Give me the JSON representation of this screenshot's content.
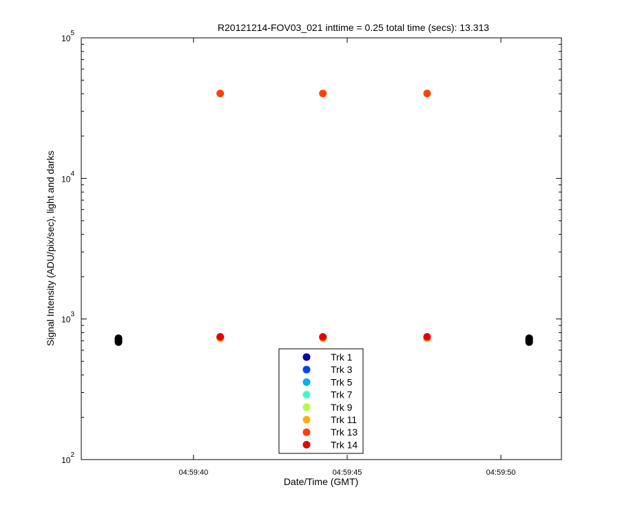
{
  "chart_data": {
    "type": "scatter",
    "title": "R20121214-FOV03_021 inttime = 0.25 total time (secs): 13.313",
    "xlabel": "Date/Time (GMT)",
    "ylabel": "Signal Intensity (ADU/pix/sec), light and darks",
    "xlim": [
      36.35,
      51.97
    ],
    "xticks": [
      {
        "value": 40,
        "label": "04:59:40"
      },
      {
        "value": 45,
        "label": "04:59:45"
      },
      {
        "value": 50,
        "label": "04:59:50"
      }
    ],
    "ylim": [
      100,
      100000
    ],
    "log_y": true,
    "yticks": [
      {
        "value": 100,
        "label": "10",
        "exponent": "2"
      },
      {
        "value": 1000,
        "label": "10",
        "exponent": "3"
      },
      {
        "value": 10000,
        "label": "10",
        "exponent": "4"
      },
      {
        "value": 100000,
        "label": "10",
        "exponent": "5"
      }
    ],
    "yminorticks": [
      200,
      300,
      400,
      500,
      600,
      700,
      800,
      900,
      2000,
      3000,
      4000,
      5000,
      6000,
      7000,
      8000,
      9000,
      20000,
      30000,
      40000,
      50000,
      60000,
      70000,
      80000,
      90000
    ],
    "grid": false,
    "legend": "lower center",
    "x": [
      40.87,
      44.21,
      47.6
    ],
    "series": [
      {
        "name": "Trk 1",
        "color": "#0000a8",
        "values": [
          740,
          740,
          740
        ]
      },
      {
        "name": "Trk 3",
        "color": "#0040ff",
        "values": [
          740,
          740,
          740
        ]
      },
      {
        "name": "Trk 5",
        "color": "#00b0f0",
        "values": [
          740,
          740,
          740
        ]
      },
      {
        "name": "Trk 7",
        "color": "#40ffc0",
        "values": [
          740,
          740,
          740
        ]
      },
      {
        "name": "Trk 9",
        "color": "#b0ff40",
        "values": [
          740,
          740,
          740
        ]
      },
      {
        "name": "Trk 11",
        "color": "#ffb000",
        "values": [
          730,
          730,
          730
        ]
      },
      {
        "name": "Trk 13",
        "color": "#ff4000",
        "values": [
          40200,
          40200,
          40200
        ]
      },
      {
        "name": "Trk 14",
        "color": "#e80000",
        "values": [
          746,
          746,
          746
        ]
      }
    ],
    "darks": {
      "color": "#000000",
      "x": [
        37.56,
        37.56,
        37.56,
        37.56,
        50.92,
        50.92,
        50.92,
        50.92
      ],
      "values": [
        685,
        700,
        715,
        730,
        685,
        700,
        715,
        730
      ]
    }
  }
}
